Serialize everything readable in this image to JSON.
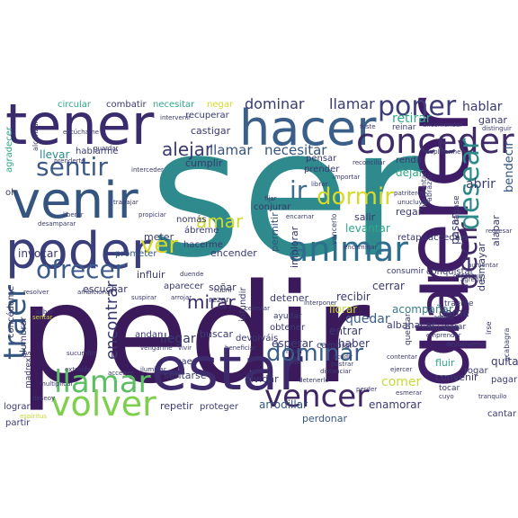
{
  "words": {
    "ser": "ser",
    "pedir": "pedir",
    "querer": "querer",
    "tener": "tener",
    "estar": "estar",
    "venir": "venir",
    "poder": "poder",
    "hacer": "hacer",
    "dar": "dar",
    "conceder": "conceder",
    "animar": "animar",
    "volver": "volver",
    "llamar": "llamar",
    "vencer": "vencer",
    "decir": "decir",
    "traer": "traer",
    "poner": "poner",
    "sentir": "sentir",
    "ofrecer": "ofrecer",
    "dormir": "dormir",
    "ver": "ver",
    "ir": "ir",
    "desear": "desear",
    "dominar": "dominar",
    "amar": "amar",
    "alejar": "alejar",
    "mirar": "mirar",
    "encontrar": "encontrar",
    "necesitar": "necesitar",
    "hablar": "hablar",
    "retirar": "retirar",
    "ganar": "ganar",
    "castigar": "castigar",
    "recuperar": "recuperar",
    "llevar": "llevar",
    "hablarme": "hablarme",
    "cumplir": "cumplir",
    "buscar": "buscar",
    "conjurar": "conjurar",
    "pensar": "pensar",
    "prender": "prender",
    "dejar": "dejar",
    "rendir": "rendir",
    "abrir": "abrir",
    "bendecir": "bendecir",
    "alabar": "alabar",
    "desmayar": "desmayar",
    "salir": "salir",
    "regar": "regar",
    "pasar": "pasar",
    "levantar": "levantar",
    "retapo": "retapo",
    "accedais": "accedáis",
    "invocar": "invocar",
    "prometer": "prometer",
    "meter": "meter",
    "abreme": "ábreme",
    "nomas": "nomás",
    "hacerme": "hacerme",
    "encender": "encender",
    "permitir": "permitir",
    "implorar": "implorar",
    "cerrar": "cerrar",
    "consumir": "consumir",
    "conquistar": "conquistar",
    "influir": "influir",
    "aparecer": "aparecer",
    "sonar": "soñar",
    "detener": "detener",
    "escuchar": "escuchar",
    "llorar": "llorar",
    "recibir": "recibir",
    "quedar": "quedar",
    "entrar": "entrar",
    "acompanar": "acompañar",
    "dame": "dame",
    "albahacar": "albahacar",
    "haber": "haber",
    "cambiar": "cambiar",
    "obtener": "obtener",
    "esperar": "esperar",
    "devolvais": "devolváis",
    "infundir": "infundir",
    "llegar": "llegar",
    "sentarse": "sentarse",
    "olvidar": "olvidar",
    "repetir": "repetir",
    "proteger": "proteger",
    "arrodillar": "arrodillar",
    "perdonar": "perdonar",
    "enamorar": "enamorar",
    "comer": "comer",
    "convenir": "convenir",
    "pagar": "pagar",
    "cantar": "cantar",
    "quitar": "quitar",
    "lograr": "lograr",
    "partir": "partir",
    "caer": "caer",
    "ayudar": "ayudar",
    "rezar": "rezar",
    "andar": "andar",
    "combatir": "combatir",
    "circular": "circular",
    "negar": "negar",
    "reinar": "reinar",
    "fluir": "fluir",
    "tocar": "tocar",
    "traeme": "tráeme",
    "parar": "parar",
    "rogar": "rogar",
    "agradecer": "agradecer",
    "oh": "oh",
    "concedeme": "concédeme",
    "alumbrar": "alumbrar",
    "madrexis": "madrexis",
    "alcanzar": "alcanzar",
    "hagase": "hágase",
    "quebrar": "quebrar",
    "acabagra": "acabagra",
    "irse": "irse",
    "abrazar": "abrazar",
    "vencerlo": "vencerlo",
    "ahuyentar": "ahuyentar",
    "t_escuchame": "escúchame",
    "t_guardar": "guardar",
    "t_prenderte": "prenderte",
    "t_encomendar": "encomendar",
    "t_distinguir": "distinguir",
    "t_suplicarme": "suplicarme",
    "t_intervenir": "intervenir",
    "t_ayudar2": "ayudar",
    "t_vencer": "vencer",
    "t_fuste": "fuste",
    "t_importar": "importar",
    "t_librar": "librar",
    "t_fijar": "fijar",
    "t_encarnar": "encarnar",
    "t_patriteron": "patriteron",
    "t_unucluyan": "unucluyan",
    "t_reconciliar": "reconciliar",
    "t_interceder": "interceder",
    "t_liberar": "liberar",
    "t_desamparar": "desamparar",
    "t_propiciar": "propiciar",
    "t_trabajar": "trabajar",
    "t_suspirar": "suspirar",
    "t_duende": "duende",
    "t_celestar": "celestar",
    "t_interponer": "interponer",
    "t_constituir": "constituir",
    "t_adorar": "adorar",
    "t_habitarse": "habitarse",
    "t_emprender": "emprender",
    "t_devuelveme": "devuélveme",
    "t_acudir": "acudir",
    "t_postrar": "postrar",
    "t_distanciar": "distanciar",
    "t_esmerar": "esmerar",
    "t_ejercer": "ejercer",
    "t_cuyo": "cuyo",
    "t_tranquilo": "tranquilo",
    "t_perder": "perder",
    "t_iluminar": "iluminar",
    "t_deseoy": "deseoy",
    "t_extraida": "extraída",
    "t_vengarme": "vengarme",
    "t_acceder": "acceder",
    "t_saber": "saber",
    "t_resolver": "resolver",
    "t_ambicionar": "ambicionar",
    "t_arrojar": "arrojar",
    "t_morir": "morir",
    "t_tonar": "tonar",
    "t_vivir": "vivir",
    "t_beneficiar": "beneficiar",
    "t_sucumbir": "sucumbir",
    "t_multiplicar": "multiplicar",
    "t_regresar": "regresar",
    "t_contentar": "contentar",
    "t_cubrir": "cubrir",
    "t_detenerlo": "detenerlo",
    "t_esplritus": "espíritus",
    "t_encaminar": "encaminar",
    "t_aumentar": "aumentar",
    "t_agregar": "agregar",
    "t_sentar": "sentar"
  }
}
